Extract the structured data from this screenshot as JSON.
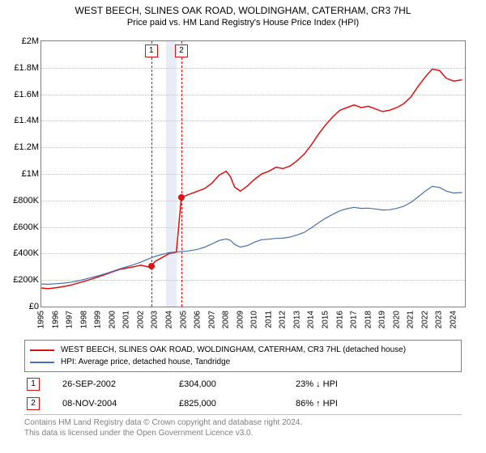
{
  "title": {
    "line1": "WEST BEECH, SLINES OAK ROAD, WOLDINGHAM, CATERHAM, CR3 7HL",
    "line2": "Price paid vs. HM Land Registry's House Price Index (HPI)"
  },
  "chart": {
    "type": "line",
    "x_axis": {
      "min_year": 1995,
      "max_year": 2024.8,
      "tick_years": [
        1995,
        1996,
        1997,
        1998,
        1999,
        2000,
        2001,
        2002,
        2003,
        2004,
        2005,
        2006,
        2007,
        2008,
        2009,
        2010,
        2011,
        2012,
        2013,
        2014,
        2015,
        2016,
        2017,
        2018,
        2019,
        2020,
        2021,
        2022,
        2023,
        2024
      ],
      "label_fontsize": 10,
      "label_rotation_deg": -90
    },
    "y_axis": {
      "min": 0,
      "max": 2000000,
      "tick_step": 200000,
      "tick_labels": [
        "£0",
        "£200K",
        "£400K",
        "£600K",
        "£800K",
        "£1M",
        "£1.2M",
        "£1.4M",
        "£1.6M",
        "£1.8M",
        "£2M"
      ],
      "label_fontsize": 11
    },
    "area_border_color": "#808080",
    "grid_color": "#c0c0c0",
    "background_color": "#ffffff",
    "shaded_band": {
      "start_year": 2003.8,
      "end_year": 2004.5,
      "color": "#e8ecf6"
    },
    "series": [
      {
        "name": "WEST BEECH, SLINES OAK ROAD, WOLDINGHAM, CATERHAM, CR3 7HL (detached house)",
        "color": "#e01010",
        "line_width": 1.5,
        "points": [
          [
            1995,
            140000
          ],
          [
            1995.5,
            135000
          ],
          [
            1996,
            142000
          ],
          [
            1996.5,
            150000
          ],
          [
            1997,
            160000
          ],
          [
            1997.5,
            175000
          ],
          [
            1998,
            190000
          ],
          [
            1998.5,
            206000
          ],
          [
            1999,
            224000
          ],
          [
            1999.5,
            242000
          ],
          [
            2000,
            262000
          ],
          [
            2000.5,
            280000
          ],
          [
            2001,
            290000
          ],
          [
            2001.5,
            300000
          ],
          [
            2002,
            312000
          ],
          [
            2002.5,
            300000
          ],
          [
            2002.74,
            304000
          ],
          [
            2003,
            340000
          ],
          [
            2003.5,
            370000
          ],
          [
            2004,
            400000
          ],
          [
            2004.5,
            410000
          ],
          [
            2004.85,
            825000
          ],
          [
            2005,
            830000
          ],
          [
            2005.5,
            850000
          ],
          [
            2006,
            870000
          ],
          [
            2006.5,
            890000
          ],
          [
            2007,
            930000
          ],
          [
            2007.5,
            990000
          ],
          [
            2008,
            1020000
          ],
          [
            2008.3,
            980000
          ],
          [
            2008.6,
            900000
          ],
          [
            2009,
            870000
          ],
          [
            2009.5,
            910000
          ],
          [
            2010,
            960000
          ],
          [
            2010.5,
            1000000
          ],
          [
            2011,
            1020000
          ],
          [
            2011.5,
            1050000
          ],
          [
            2012,
            1040000
          ],
          [
            2012.5,
            1060000
          ],
          [
            2013,
            1100000
          ],
          [
            2013.5,
            1150000
          ],
          [
            2014,
            1220000
          ],
          [
            2014.5,
            1300000
          ],
          [
            2015,
            1370000
          ],
          [
            2015.5,
            1430000
          ],
          [
            2016,
            1480000
          ],
          [
            2016.5,
            1500000
          ],
          [
            2017,
            1520000
          ],
          [
            2017.5,
            1500000
          ],
          [
            2018,
            1510000
          ],
          [
            2018.5,
            1490000
          ],
          [
            2019,
            1470000
          ],
          [
            2019.5,
            1480000
          ],
          [
            2020,
            1500000
          ],
          [
            2020.5,
            1530000
          ],
          [
            2021,
            1580000
          ],
          [
            2021.5,
            1660000
          ],
          [
            2022,
            1730000
          ],
          [
            2022.5,
            1790000
          ],
          [
            2023,
            1780000
          ],
          [
            2023.5,
            1720000
          ],
          [
            2024,
            1700000
          ],
          [
            2024.6,
            1710000
          ]
        ]
      },
      {
        "name": "HPI: Average price, detached house, Tandridge",
        "color": "#4a6fb0",
        "line_width": 1.2,
        "points": [
          [
            1995,
            170000
          ],
          [
            1995.5,
            168000
          ],
          [
            1996,
            172000
          ],
          [
            1996.5,
            176000
          ],
          [
            1997,
            182000
          ],
          [
            1997.5,
            192000
          ],
          [
            1998,
            205000
          ],
          [
            1998.5,
            218000
          ],
          [
            1999,
            232000
          ],
          [
            1999.5,
            248000
          ],
          [
            2000,
            266000
          ],
          [
            2000.5,
            284000
          ],
          [
            2001,
            300000
          ],
          [
            2001.5,
            316000
          ],
          [
            2002,
            335000
          ],
          [
            2002.5,
            358000
          ],
          [
            2003,
            378000
          ],
          [
            2003.5,
            394000
          ],
          [
            2004,
            406000
          ],
          [
            2004.5,
            412000
          ],
          [
            2005,
            416000
          ],
          [
            2005.5,
            422000
          ],
          [
            2006,
            432000
          ],
          [
            2006.5,
            448000
          ],
          [
            2007,
            472000
          ],
          [
            2007.5,
            498000
          ],
          [
            2008,
            510000
          ],
          [
            2008.3,
            500000
          ],
          [
            2008.6,
            468000
          ],
          [
            2009,
            448000
          ],
          [
            2009.5,
            460000
          ],
          [
            2010,
            486000
          ],
          [
            2010.5,
            504000
          ],
          [
            2011,
            508000
          ],
          [
            2011.5,
            514000
          ],
          [
            2012,
            516000
          ],
          [
            2012.5,
            524000
          ],
          [
            2013,
            540000
          ],
          [
            2013.5,
            560000
          ],
          [
            2014,
            594000
          ],
          [
            2014.5,
            632000
          ],
          [
            2015,
            666000
          ],
          [
            2015.5,
            696000
          ],
          [
            2016,
            722000
          ],
          [
            2016.5,
            738000
          ],
          [
            2017,
            748000
          ],
          [
            2017.5,
            740000
          ],
          [
            2018,
            742000
          ],
          [
            2018.5,
            736000
          ],
          [
            2019,
            728000
          ],
          [
            2019.5,
            730000
          ],
          [
            2020,
            740000
          ],
          [
            2020.5,
            756000
          ],
          [
            2021,
            786000
          ],
          [
            2021.5,
            826000
          ],
          [
            2022,
            870000
          ],
          [
            2022.5,
            906000
          ],
          [
            2023,
            898000
          ],
          [
            2023.5,
            870000
          ],
          [
            2024,
            856000
          ],
          [
            2024.6,
            860000
          ]
        ]
      }
    ],
    "event_lines": [
      {
        "marker": "1",
        "year": 2002.74,
        "value": 304000
      },
      {
        "marker": "2",
        "year": 2004.85,
        "value": 825000
      }
    ],
    "event_line_color": "#e01010",
    "event_box_border": "#e01010"
  },
  "legend": {
    "border_color": "#808080",
    "fontsize": 10,
    "items": [
      {
        "color": "#e01010",
        "text": "WEST BEECH, SLINES OAK ROAD, WOLDINGHAM, CATERHAM, CR3 7HL (detached house)"
      },
      {
        "color": "#4a6fb0",
        "text": "HPI: Average price, detached house, Tandridge"
      }
    ]
  },
  "events_table": {
    "rows": [
      {
        "marker": "1",
        "date": "26-SEP-2002",
        "price": "£304,000",
        "delta": "23% ↓ HPI"
      },
      {
        "marker": "2",
        "date": "08-NOV-2004",
        "price": "£825,000",
        "delta": "86% ↑ HPI"
      }
    ]
  },
  "footer": {
    "line1": "Contains HM Land Registry data © Crown copyright and database right 2024.",
    "line2": "This data is licensed under the Open Government Licence v3.0.",
    "color": "#808080",
    "fontsize": 10
  }
}
